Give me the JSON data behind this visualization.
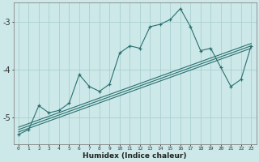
{
  "xlabel": "Humidex (Indice chaleur)",
  "bg_color": "#cce8e8",
  "grid_color": "#aad0d0",
  "line_color": "#2a7070",
  "x_data": [
    0,
    1,
    2,
    3,
    4,
    5,
    6,
    7,
    8,
    9,
    10,
    11,
    12,
    13,
    14,
    15,
    16,
    17,
    18,
    19,
    20,
    21,
    22,
    23
  ],
  "series1": [
    -5.35,
    -5.25,
    -4.75,
    -4.9,
    -4.85,
    -4.7,
    -4.1,
    -4.35,
    -4.45,
    -4.3,
    -3.65,
    -3.5,
    -3.55,
    -3.1,
    -3.05,
    -2.95,
    -2.72,
    -3.1,
    -3.6,
    -3.55,
    -3.95,
    -4.35,
    -4.2,
    -3.5
  ],
  "trend1_x": [
    0,
    23
  ],
  "trend1_y": [
    -5.2,
    -3.45
  ],
  "trend2_x": [
    0,
    23
  ],
  "trend2_y": [
    -5.25,
    -3.5
  ],
  "trend3_x": [
    0,
    23
  ],
  "trend3_y": [
    -5.3,
    -3.55
  ],
  "ylim": [
    -5.55,
    -2.6
  ],
  "xlim": [
    -0.5,
    23.5
  ],
  "yticks": [
    -5,
    -4,
    -3
  ],
  "ytick_labels": [
    "-5",
    "-4",
    "-3"
  ]
}
